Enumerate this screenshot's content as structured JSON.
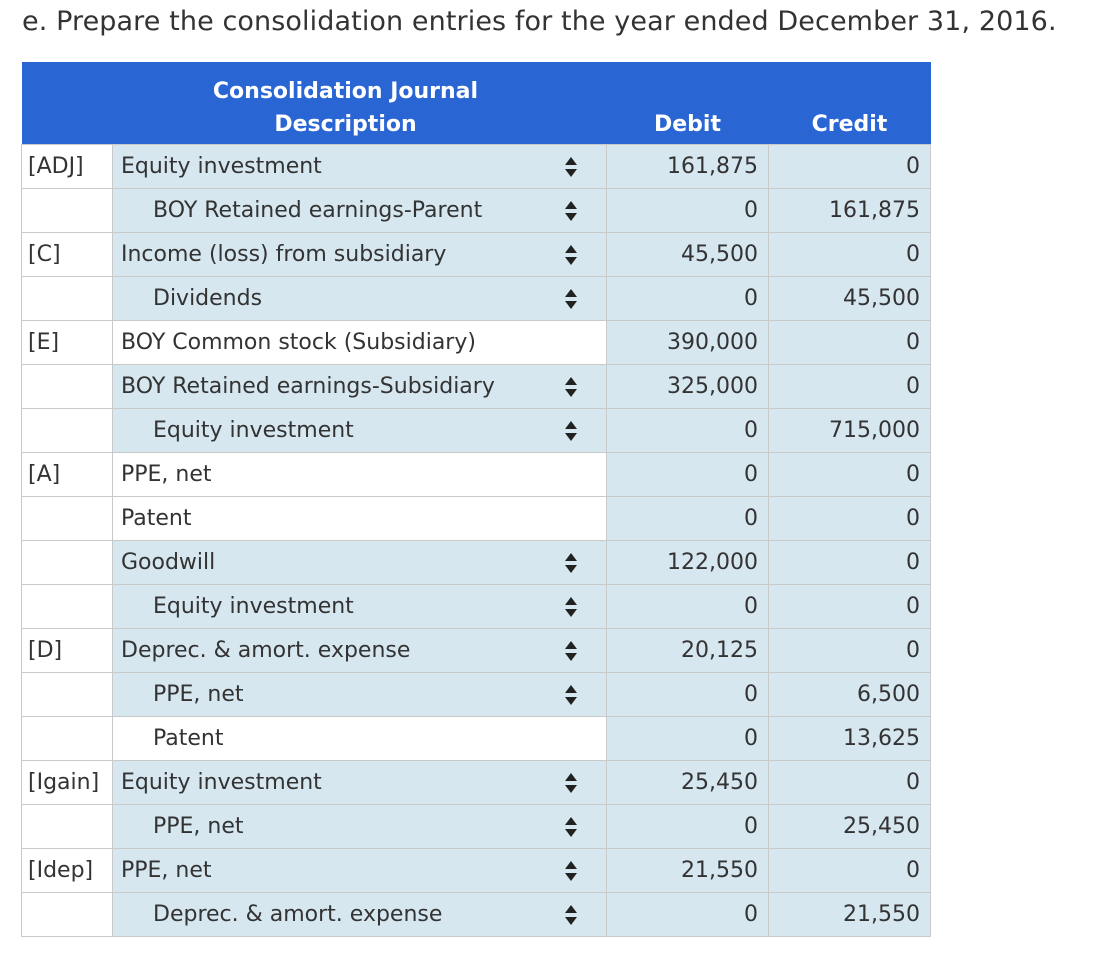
{
  "prompt": "e. Prepare the consolidation entries for the year ended December 31, 2016.",
  "journal": {
    "title": "Consolidation Journal",
    "headers": {
      "description": "Description",
      "debit": "Debit",
      "credit": "Credit"
    },
    "rows": [
      {
        "ref": "[ADJ]",
        "desc": "Equity investment",
        "indent": false,
        "select": true,
        "debit": "161,875",
        "credit": "0"
      },
      {
        "ref": "",
        "desc": "BOY Retained earnings-Parent",
        "indent": true,
        "select": true,
        "debit": "0",
        "credit": "161,875"
      },
      {
        "ref": "[C]",
        "desc": "Income (loss) from subsidiary",
        "indent": false,
        "select": true,
        "debit": "45,500",
        "credit": "0"
      },
      {
        "ref": "",
        "desc": "Dividends",
        "indent": true,
        "select": true,
        "debit": "0",
        "credit": "45,500"
      },
      {
        "ref": "[E]",
        "desc": "BOY Common stock (Subsidiary)",
        "indent": false,
        "select": false,
        "debit": "390,000",
        "credit": "0"
      },
      {
        "ref": "",
        "desc": "BOY Retained earnings-Subsidiary",
        "indent": false,
        "select": true,
        "debit": "325,000",
        "credit": "0"
      },
      {
        "ref": "",
        "desc": "Equity investment",
        "indent": true,
        "select": true,
        "debit": "0",
        "credit": "715,000"
      },
      {
        "ref": "[A]",
        "desc": "PPE, net",
        "indent": false,
        "select": false,
        "debit": "0",
        "credit": "0"
      },
      {
        "ref": "",
        "desc": "Patent",
        "indent": false,
        "select": false,
        "debit": "0",
        "credit": "0"
      },
      {
        "ref": "",
        "desc": "Goodwill",
        "indent": false,
        "select": true,
        "debit": "122,000",
        "credit": "0"
      },
      {
        "ref": "",
        "desc": "Equity investment",
        "indent": true,
        "select": true,
        "debit": "0",
        "credit": "0"
      },
      {
        "ref": "[D]",
        "desc": "Deprec. & amort. expense",
        "indent": false,
        "select": true,
        "debit": "20,125",
        "credit": "0"
      },
      {
        "ref": "",
        "desc": "PPE, net",
        "indent": true,
        "select": true,
        "debit": "0",
        "credit": "6,500"
      },
      {
        "ref": "",
        "desc": "Patent",
        "indent": true,
        "select": false,
        "debit": "0",
        "credit": "13,625"
      },
      {
        "ref": "[Igain]",
        "desc": "Equity investment",
        "indent": false,
        "select": true,
        "debit": "25,450",
        "credit": "0"
      },
      {
        "ref": "",
        "desc": "PPE, net",
        "indent": true,
        "select": true,
        "debit": "0",
        "credit": "25,450"
      },
      {
        "ref": "[Idep]",
        "desc": "PPE, net",
        "indent": false,
        "select": true,
        "debit": "21,550",
        "credit": "0"
      },
      {
        "ref": "",
        "desc": "Deprec. & amort. expense",
        "indent": true,
        "select": true,
        "debit": "0",
        "credit": "21,550"
      }
    ]
  }
}
